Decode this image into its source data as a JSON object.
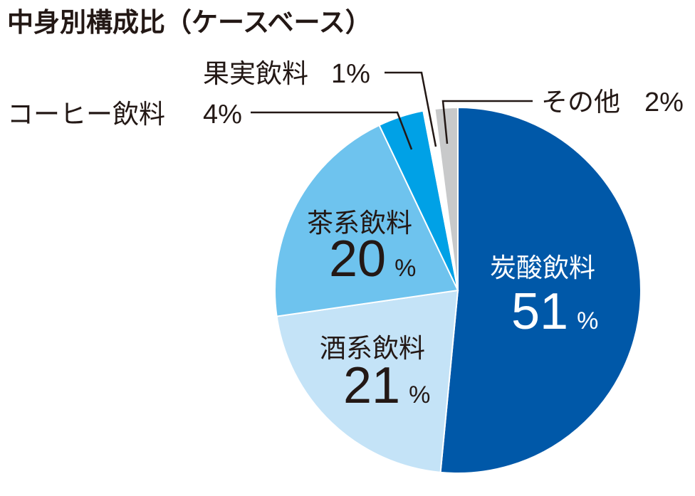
{
  "chart_data": {
    "type": "pie",
    "title": "中身別構成比（ケースベース）",
    "unit": "%",
    "slices": [
      {
        "name": "炭酸飲料",
        "value": 51,
        "color": "#0058a8",
        "label_position": "inside",
        "label_color": "#ffffff"
      },
      {
        "name": "酒系飲料",
        "value": 21,
        "color": "#c4e3f7",
        "label_position": "inside",
        "label_color": "#231815"
      },
      {
        "name": "茶系飲料",
        "value": 20,
        "color": "#6ec3ee",
        "label_position": "inside",
        "label_color": "#231815"
      },
      {
        "name": "コーヒー飲料",
        "value": 4,
        "color": "#00a1e6",
        "label_position": "outside"
      },
      {
        "name": "果実飲料",
        "value": 1,
        "color": "#ffffff",
        "label_position": "outside"
      },
      {
        "name": "その他",
        "value": 2,
        "color": "#c8c9ca",
        "label_position": "outside"
      }
    ]
  }
}
